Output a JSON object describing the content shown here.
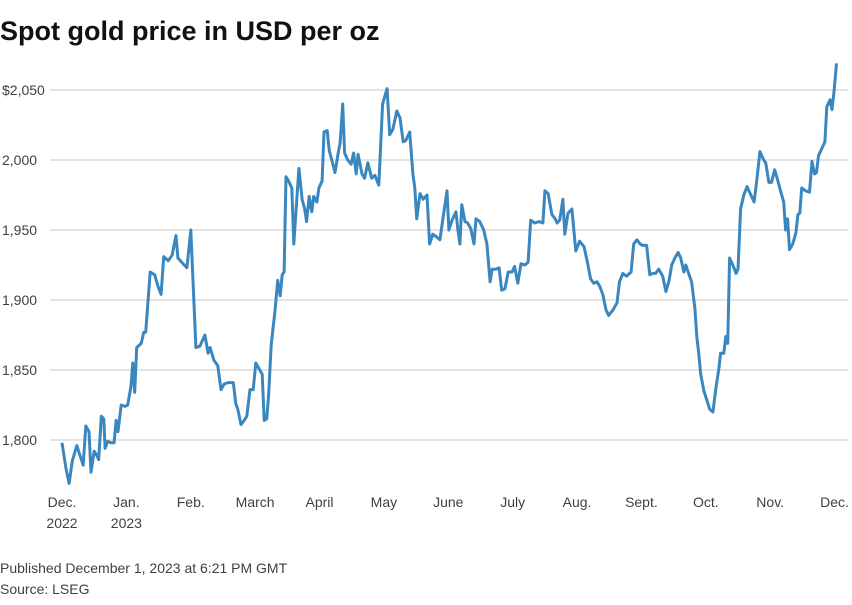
{
  "chart_data": {
    "type": "line",
    "title": "Spot gold price in USD per oz",
    "notes": [
      "Published December 1, 2023 at 6:21 PM GMT",
      "Source: LSEG"
    ],
    "xlim": [
      0,
      12.1
    ],
    "xticks": [
      {
        "value": 0,
        "label": "Dec.\n2022"
      },
      {
        "value": 1,
        "label": "Jan.\n2023"
      },
      {
        "value": 2,
        "label": "Feb."
      },
      {
        "value": 3,
        "label": "March"
      },
      {
        "value": 4,
        "label": "April"
      },
      {
        "value": 5,
        "label": "May"
      },
      {
        "value": 6,
        "label": "June"
      },
      {
        "value": 7,
        "label": "July"
      },
      {
        "value": 8,
        "label": "Aug."
      },
      {
        "value": 9,
        "label": "Sept."
      },
      {
        "value": 10,
        "label": "Oct."
      },
      {
        "value": 11,
        "label": "Nov."
      },
      {
        "value": 12,
        "label": "Dec."
      }
    ],
    "ylim": [
      1770,
      2070
    ],
    "yticks": [
      {
        "value": 1800,
        "label": "1,800"
      },
      {
        "value": 1850,
        "label": "1,850"
      },
      {
        "value": 1900,
        "label": "1,900"
      },
      {
        "value": 1950,
        "label": "1,950"
      },
      {
        "value": 2000,
        "label": "2,000"
      },
      {
        "value": 2050,
        "label": "$2,050"
      }
    ],
    "grid": true,
    "color": "#3a87c0",
    "x": [
      0,
      0.06,
      0.11,
      0.16,
      0.23,
      0.28,
      0.33,
      0.37,
      0.42,
      0.45,
      0.5,
      0.54,
      0.57,
      0.61,
      0.65,
      0.67,
      0.71,
      0.76,
      0.81,
      0.84,
      0.87,
      0.92,
      0.98,
      1.02,
      1.07,
      1.1,
      1.13,
      1.16,
      1.23,
      1.27,
      1.3,
      1.37,
      1.44,
      1.49,
      1.54,
      1.58,
      1.65,
      1.71,
      1.77,
      1.8,
      1.88,
      1.94,
      2.0,
      2.08,
      2.14,
      2.22,
      2.27,
      2.3,
      2.36,
      2.42,
      2.47,
      2.52,
      2.58,
      2.66,
      2.7,
      2.73,
      2.78,
      2.83,
      2.87,
      2.92,
      2.97,
      3.01,
      3.06,
      3.11,
      3.14,
      3.18,
      3.21,
      3.25,
      3.31,
      3.35,
      3.39,
      3.42,
      3.45,
      3.48,
      3.52,
      3.57,
      3.6,
      3.65,
      3.68,
      3.73,
      3.77,
      3.8,
      3.84,
      3.88,
      3.91,
      3.96,
      3.99,
      4.04,
      4.07,
      4.12,
      4.15,
      4.19,
      4.24,
      4.29,
      4.32,
      4.36,
      4.39,
      4.44,
      4.49,
      4.53,
      4.57,
      4.6,
      4.66,
      4.7,
      4.75,
      4.81,
      4.86,
      4.92,
      4.98,
      5.05,
      5.09,
      5.14,
      5.2,
      5.25,
      5.3,
      5.34,
      5.4,
      5.45,
      5.48,
      5.51,
      5.56,
      5.61,
      5.67,
      5.71,
      5.76,
      5.82,
      5.87,
      5.92,
      5.98,
      6.01,
      6.06,
      6.12,
      6.15,
      6.18,
      6.21,
      6.26,
      6.3,
      6.35,
      6.4,
      6.43,
      6.49,
      6.55,
      6.6,
      6.65,
      6.68,
      6.74,
      6.79,
      6.83,
      6.88,
      6.93,
      6.99,
      7.03,
      7.08,
      7.13,
      7.19,
      7.24,
      7.28,
      7.34,
      7.41,
      7.47,
      7.5,
      7.55,
      7.61,
      7.66,
      7.69,
      7.73,
      7.78,
      7.81,
      7.86,
      7.92,
      7.98,
      8.04,
      8.11,
      8.17,
      8.21,
      8.26,
      8.31,
      8.35,
      8.4,
      8.45,
      8.49,
      8.56,
      8.62,
      8.66,
      8.71,
      8.77,
      8.84,
      8.88,
      8.93,
      8.98,
      9.02,
      9.08,
      9.13,
      9.18,
      9.22,
      9.27,
      9.33,
      9.38,
      9.43,
      9.47,
      9.52,
      9.57,
      9.61,
      9.66,
      9.69,
      9.74,
      9.78,
      9.83,
      9.86,
      9.89,
      9.92,
      9.97,
      10.02,
      10.06,
      10.11,
      10.16,
      10.2,
      10.23,
      10.28,
      10.31,
      10.34,
      10.37,
      10.42,
      10.47,
      10.5,
      10.54,
      10.59,
      10.64,
      10.68,
      10.75,
      10.79,
      10.84,
      10.9,
      10.93,
      10.98,
      11.02,
      11.07,
      11.12,
      11.16,
      11.21,
      11.24,
      11.27,
      11.3,
      11.35,
      11.4,
      11.43,
      11.46,
      11.49,
      11.55,
      11.61,
      11.65,
      11.69,
      11.72,
      11.75,
      11.8,
      11.85,
      11.88,
      11.93,
      11.96,
      11.99,
      12.03
    ],
    "values": [
      1798,
      1780,
      1769,
      1785,
      1796,
      1789,
      1782,
      1810,
      1806,
      1777,
      1792,
      1789,
      1786,
      1817,
      1815,
      1794,
      1799,
      1798,
      1798,
      1814,
      1806,
      1825,
      1824,
      1825,
      1838,
      1855,
      1834,
      1866,
      1869,
      1877,
      1877,
      1920,
      1918,
      1910,
      1904,
      1931,
      1928,
      1932,
      1946,
      1930,
      1926,
      1923,
      1950,
      1866,
      1867,
      1875,
      1862,
      1866,
      1857,
      1853,
      1836,
      1840,
      1841,
      1841,
      1826,
      1822,
      1811,
      1814,
      1817,
      1836,
      1836,
      1855,
      1851,
      1847,
      1814,
      1815,
      1833,
      1868,
      1893,
      1914,
      1903,
      1918,
      1920,
      1988,
      1985,
      1980,
      1940,
      1974,
      1994,
      1972,
      1965,
      1956,
      1974,
      1963,
      1974,
      1970,
      1980,
      1985,
      2020,
      2021,
      2007,
      2000,
      1991,
      2005,
      2012,
      2040,
      2005,
      2000,
      1997,
      2005,
      1990,
      2004,
      1990,
      1987,
      1998,
      1987,
      1989,
      1982,
      2040,
      2051,
      2018,
      2022,
      2035,
      2030,
      2013,
      2014,
      2020,
      1990,
      1980,
      1958,
      1976,
      1972,
      1975,
      1940,
      1947,
      1945,
      1943,
      1959,
      1978,
      1950,
      1957,
      1963,
      1950,
      1940,
      1968,
      1956,
      1955,
      1951,
      1940,
      1958,
      1956,
      1950,
      1940,
      1913,
      1922,
      1922,
      1923,
      1907,
      1908,
      1920,
      1920,
      1924,
      1912,
      1926,
      1925,
      1927,
      1957,
      1955,
      1956,
      1955,
      1978,
      1976,
      1961,
      1958,
      1955,
      1957,
      1972,
      1947,
      1962,
      1965,
      1935,
      1942,
      1938,
      1925,
      1915,
      1912,
      1913,
      1910,
      1904,
      1893,
      1889,
      1893,
      1898,
      1913,
      1919,
      1917,
      1920,
      1940,
      1943,
      1940,
      1939,
      1939,
      1918,
      1919,
      1919,
      1922,
      1917,
      1906,
      1914,
      1925,
      1930,
      1934,
      1930,
      1920,
      1925,
      1918,
      1913,
      1894,
      1874,
      1862,
      1847,
      1835,
      1828,
      1822,
      1820,
      1838,
      1850,
      1862,
      1862,
      1874,
      1869,
      1930,
      1925,
      1919,
      1922,
      1965,
      1975,
      1981,
      1977,
      1970,
      1985,
      2006,
      2000,
      1998,
      1984,
      1984,
      1993,
      1985,
      1978,
      1970,
      1950,
      1958,
      1936,
      1940,
      1948,
      1961,
      1962,
      1980,
      1978,
      1977,
      1999,
      1990,
      1991,
      2003,
      2008,
      2013,
      2038,
      2043,
      2036,
      2048,
      2069
    ]
  }
}
